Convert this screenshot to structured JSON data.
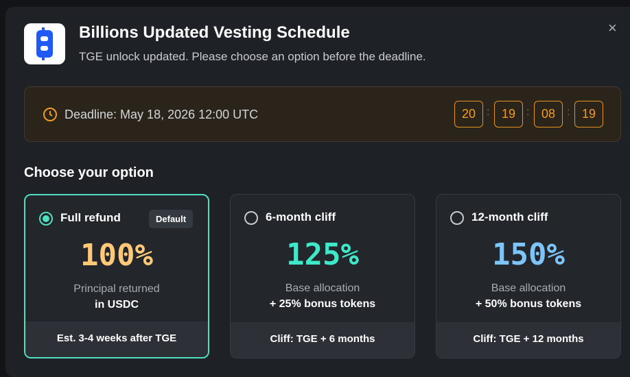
{
  "header": {
    "title": "Billions Updated Vesting Schedule",
    "subtitle": "TGE unlock updated. Please choose an option before the deadline."
  },
  "deadline": {
    "label": "Deadline: May 18, 2026 12:00 UTC",
    "countdown": [
      "20",
      "19",
      "08",
      "19"
    ]
  },
  "section_title": "Choose your option",
  "selected_option": 0,
  "options": [
    {
      "label": "Full refund",
      "badge": "Default",
      "percent": "100%",
      "accent": "#ffc978",
      "description": [
        "Principal returned",
        "in USDC"
      ],
      "footer": "Est. 3-4 weeks after TGE"
    },
    {
      "label": "6-month cliff",
      "percent": "125%",
      "accent": "#3ee8c8",
      "description": [
        "Base allocation",
        "+ 25% bonus tokens"
      ],
      "footer": "Cliff: TGE + 6 months"
    },
    {
      "label": "12-month cliff",
      "percent": "150%",
      "accent": "#7cc4f9",
      "description": [
        "Base allocation",
        "+ 50% bonus tokens"
      ],
      "footer": "Cliff: TGE + 12 months"
    }
  ]
}
